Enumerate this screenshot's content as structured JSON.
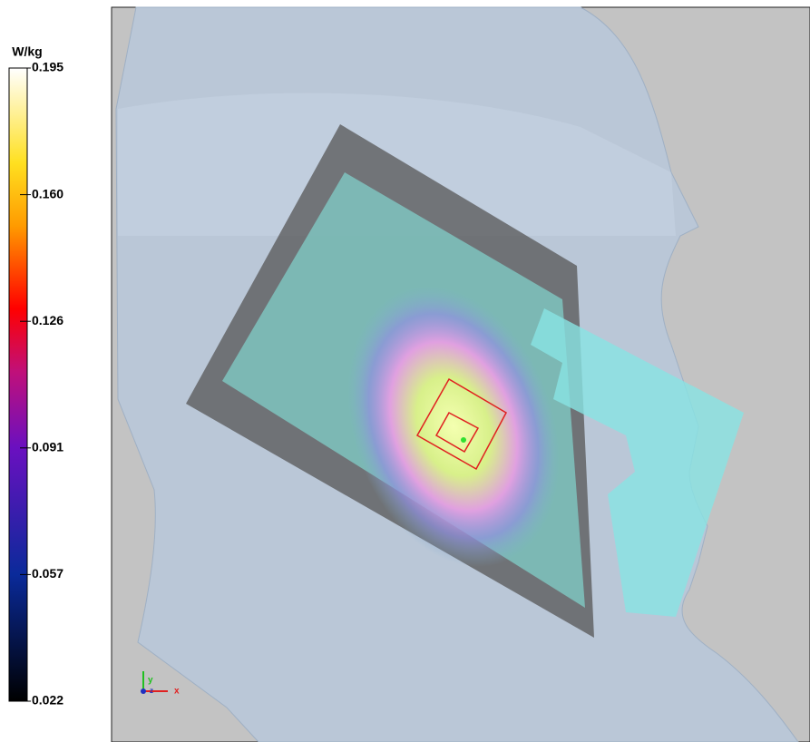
{
  "colorbar": {
    "unit": "W/kg",
    "ticks": [
      "0.195",
      "0.160",
      "0.126",
      "0.091",
      "0.057",
      "0.022"
    ]
  },
  "axes_triad": {
    "y": "y",
    "x": "x",
    "z": "z"
  }
}
